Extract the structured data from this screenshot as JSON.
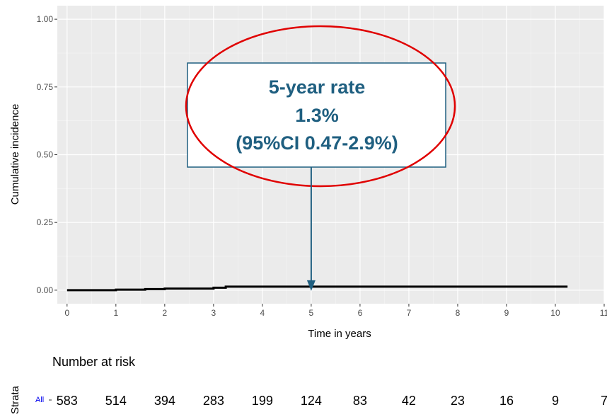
{
  "chart_data": {
    "type": "line",
    "xlabel": "Time in years",
    "ylabel": "Cumulative incidence",
    "xlim": [
      -0.2,
      11
    ],
    "ylim": [
      -0.05,
      1.05
    ],
    "x_ticks": [
      0,
      1,
      2,
      3,
      4,
      5,
      6,
      7,
      8,
      9,
      10,
      11
    ],
    "x_tick_labels": [
      "0",
      "1",
      "2",
      "3",
      "4",
      "5",
      "6",
      "7",
      "8",
      "9",
      "10",
      "11"
    ],
    "y_ticks": [
      0,
      0.25,
      0.5,
      0.75,
      1.0
    ],
    "y_tick_labels": [
      "0.00",
      "0.25",
      "0.50",
      "0.75",
      "1.00"
    ],
    "grid": true,
    "series": [
      {
        "color": "#000000",
        "x": [
          0,
          1.0,
          1.6,
          2.0,
          3.0,
          3.25,
          10.25
        ],
        "y": [
          0,
          0.002,
          0.004,
          0.006,
          0.009,
          0.013,
          0.013
        ]
      }
    ],
    "annotation": {
      "lines": [
        "5-year rate",
        "1.3%",
        "(95%CI 0.47-2.9%)"
      ],
      "arrow_x": 5,
      "arrow_y": 0.0,
      "box_color": "#1f5f80",
      "ellipse_color": "#e00000"
    },
    "risk_table": {
      "title": "Number at risk",
      "strata_label": "Strata",
      "strata_name": "All",
      "times": [
        0,
        1,
        2,
        3,
        4,
        5,
        6,
        7,
        8,
        9,
        10,
        11
      ],
      "values": [
        "583",
        "514",
        "394",
        "283",
        "199",
        "124",
        "83",
        "42",
        "23",
        "16",
        "9",
        "7"
      ]
    }
  }
}
